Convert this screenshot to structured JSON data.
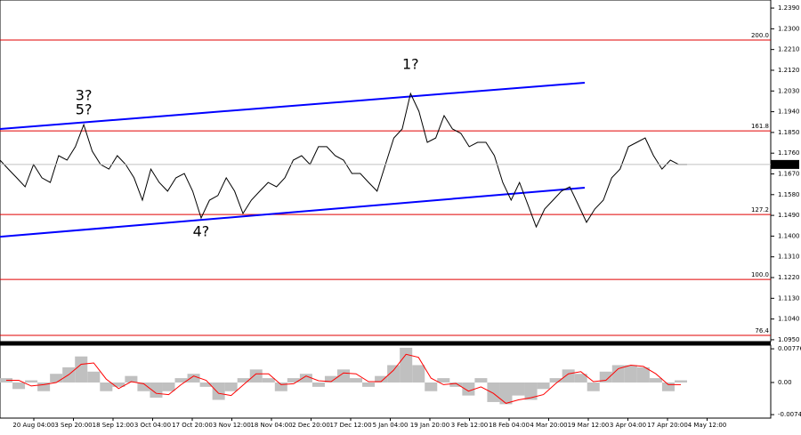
{
  "chart_data": [
    {
      "type": "line",
      "color": "#000000",
      "values": [
        1.173,
        1.1691,
        1.1653,
        1.1614,
        1.1711,
        1.1653,
        1.1633,
        1.1749,
        1.173,
        1.1788,
        1.1884,
        1.1769,
        1.1711,
        1.1691,
        1.1749,
        1.1711,
        1.1653,
        1.1556,
        1.1691,
        1.1633,
        1.1595,
        1.1653,
        1.1672,
        1.1595,
        1.1479,
        1.1556,
        1.1576,
        1.1653,
        1.1595,
        1.1498,
        1.1556,
        1.1595,
        1.1633,
        1.1614,
        1.1653,
        1.173,
        1.1749,
        1.1711,
        1.1788,
        1.1788,
        1.1749,
        1.173,
        1.1672,
        1.1672,
        1.1633,
        1.1595,
        1.1711,
        1.1826,
        1.1865,
        1.2019,
        1.1942,
        1.1807,
        1.1826,
        1.1923,
        1.1865,
        1.1846,
        1.1788,
        1.1807,
        1.1807,
        1.1749,
        1.1633,
        1.1556,
        1.1633,
        1.1537,
        1.144,
        1.1518,
        1.1556,
        1.1595,
        1.1614,
        1.1537,
        1.146,
        1.1518,
        1.1556,
        1.1653,
        1.1691,
        1.1788,
        1.1807,
        1.1826,
        1.1749,
        1.1691,
        1.173,
        1.1711,
        1.1711
      ],
      "ylim": [
        1.0942,
        1.2425
      ],
      "yticks": [
        {
          "value": 1.239,
          "label": "1.2390"
        },
        {
          "value": 1.23,
          "label": "1.2300"
        },
        {
          "value": 1.221,
          "label": "1.2210"
        },
        {
          "value": 1.212,
          "label": "1.2120"
        },
        {
          "value": 1.203,
          "label": "1.2030"
        },
        {
          "value": 1.194,
          "label": "1.1940"
        },
        {
          "value": 1.185,
          "label": "1.1850"
        },
        {
          "value": 1.176,
          "label": "1.1760"
        },
        {
          "value": 1.167,
          "label": "1.1670"
        },
        {
          "value": 1.158,
          "label": "1.1580"
        },
        {
          "value": 1.149,
          "label": "1.1490"
        },
        {
          "value": 1.14,
          "label": "1.1400"
        },
        {
          "value": 1.131,
          "label": "1.1310"
        },
        {
          "value": 1.122,
          "label": "1.1220"
        },
        {
          "value": 1.113,
          "label": "1.1130"
        },
        {
          "value": 1.104,
          "label": "1.1040"
        },
        {
          "value": 1.095,
          "label": "1.0950"
        }
      ],
      "current_price": 1.1711,
      "levels": [
        {
          "label": "200.0",
          "value": 1.2251
        },
        {
          "label": "161.8",
          "value": 1.1857
        },
        {
          "label": "127.2",
          "value": 1.1494
        },
        {
          "label": "100.0",
          "value": 1.1212
        },
        {
          "label": "76.4",
          "value": 1.0969
        }
      ],
      "level_color": "#e00000",
      "trend_lines": [
        {
          "color": "#0000ff",
          "values": [
            1.1865,
            1.2066
          ]
        },
        {
          "color": "#0000ff",
          "values": [
            1.1397,
            1.161
          ]
        }
      ],
      "annotations": [
        {
          "text": "3?",
          "color": "#e00000",
          "index": 10
        },
        {
          "text": "5?",
          "color": "#0000ff",
          "index": 10
        },
        {
          "text": "4?",
          "color": "#e00000",
          "index": 24
        },
        {
          "text": "1?",
          "color": "#0000ff",
          "index": 49
        }
      ],
      "xtick_labels": [
        "20 Aug 04:00",
        "3 Sep 20:00",
        "18 Sep 12:00",
        "3 Oct 04:00",
        "17 Oct 20:00",
        "3 Nov 12:00",
        "18 Nov 04:00",
        "2 Dec 20:00",
        "17 Dec 12:00",
        "5 Jan 04:00",
        "19 Jan 20:00",
        "3 Feb 12:00",
        "18 Feb 04:00",
        "4 Mar 20:00",
        "19 Mar 12:00",
        "3 Apr 04:00",
        "17 Apr 20:00",
        "4 May 12:00"
      ]
    },
    {
      "type": "bar",
      "series": [
        {
          "color": "#c0c0c0",
          "values": [
            0.001,
            -0.0015,
            0.0005,
            -0.002,
            0.002,
            0.0035,
            0.006,
            0.0025,
            -0.002,
            -0.001,
            0.0015,
            -0.002,
            -0.0035,
            -0.002,
            0.001,
            0.002,
            -0.001,
            -0.004,
            -0.002,
            0.001,
            0.003,
            0.001,
            -0.002,
            0.001,
            0.002,
            -0.001,
            0.0015,
            0.003,
            0.001,
            -0.001,
            0.0015,
            0.004,
            0.008,
            0.004,
            -0.002,
            0.001,
            -0.001,
            -0.003,
            0.001,
            -0.0045,
            -0.005,
            -0.003,
            -0.004,
            -0.0015,
            0.001,
            0.003,
            0.002,
            -0.002,
            0.0025,
            0.004,
            0.004,
            0.0035,
            0.001,
            -0.002,
            0.0005
          ]
        },
        {
          "color": "#ff0000",
          "values": [
            0.0005,
            0.0005,
            -0.0008,
            -0.0005,
            0,
            0.0018,
            0.0042,
            0.0045,
            0.0008,
            -0.0014,
            0.0002,
            -0.0003,
            -0.0025,
            -0.0028,
            -0.0005,
            0.0015,
            0.0005,
            -0.0025,
            -0.003,
            -0.0005,
            0.002,
            0.002,
            -0.0005,
            -0.0003,
            0.0015,
            0.0004,
            0.0002,
            0.0022,
            0.002,
            0.0002,
            0.0002,
            0.0028,
            0.0065,
            0.0058,
            0.001,
            -0.0005,
            -0.0002,
            -0.002,
            -0.001,
            -0.0025,
            -0.0048,
            -0.004,
            -0.0035,
            -0.0028,
            -0.0002,
            0.002,
            0.0025,
            0.0002,
            0.0005,
            0.0032,
            0.004,
            0.0037,
            0.002,
            -0.0005,
            -0.0005
          ]
        }
      ],
      "ylim": [
        -0.0082,
        0.0086
      ],
      "yticks": [
        0.00776,
        {
          "value": 0,
          "label": "0.00"
        },
        -0.0074
      ]
    }
  ]
}
